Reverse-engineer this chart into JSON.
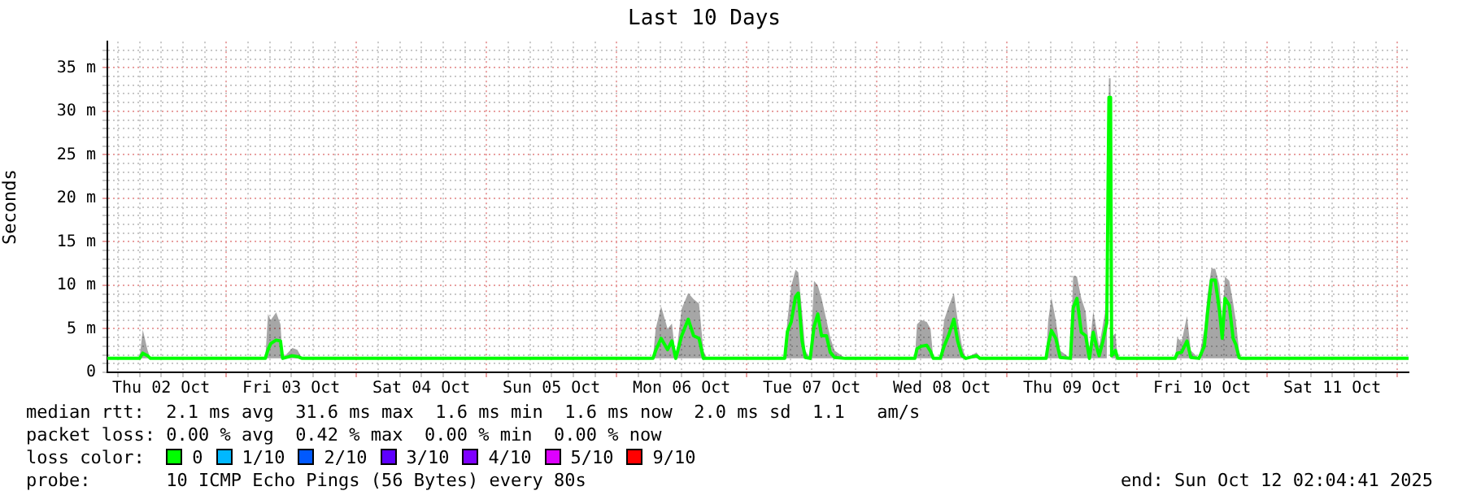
{
  "chart_data": {
    "type": "line",
    "title": "Last 10 Days",
    "ylabel": "Seconds",
    "legend_title": "loss color:",
    "legend": "bottom",
    "grid": true,
    "x": [
      "2025-10-02T02:04",
      "2025-10-02T08:00",
      "2025-10-02T08:36",
      "2025-10-02T09:30",
      "2025-10-02T10:00",
      "2025-10-03T07:12",
      "2025-10-03T07:42",
      "2025-10-03T08:12",
      "2025-10-03T09:12",
      "2025-10-03T10:00",
      "2025-10-03T10:24",
      "2025-10-03T12:12",
      "2025-10-03T13:06",
      "2025-10-03T14:00",
      "2025-10-06T06:42",
      "2025-10-06T07:12",
      "2025-10-06T08:12",
      "2025-10-06T09:24",
      "2025-10-06T10:12",
      "2025-10-06T10:54",
      "2025-10-06T12:00",
      "2025-10-06T13:12",
      "2025-10-06T14:12",
      "2025-10-06T15:12",
      "2025-10-06T16:00",
      "2025-10-06T16:42",
      "2025-10-07T07:00",
      "2025-10-07T07:30",
      "2025-10-07T08:12",
      "2025-10-07T09:00",
      "2025-10-07T09:30",
      "2025-10-07T10:12",
      "2025-10-07T10:48",
      "2025-10-07T11:42",
      "2025-10-07T12:24",
      "2025-10-07T13:06",
      "2025-10-07T13:48",
      "2025-10-07T14:42",
      "2025-10-07T15:24",
      "2025-10-07T16:12",
      "2025-10-07T18:12",
      "2025-10-08T07:00",
      "2025-10-08T07:24",
      "2025-10-08T08:12",
      "2025-10-08T09:12",
      "2025-10-08T09:54",
      "2025-10-08T10:24",
      "2025-10-08T11:42",
      "2025-10-08T12:24",
      "2025-10-08T13:12",
      "2025-10-08T14:12",
      "2025-10-08T14:54",
      "2025-10-08T15:42",
      "2025-10-08T16:24",
      "2025-10-08T18:24",
      "2025-10-08T19:00",
      "2025-10-09T07:12",
      "2025-10-09T07:36",
      "2025-10-09T08:12",
      "2025-10-09T09:00",
      "2025-10-09T09:48",
      "2025-10-09T11:42",
      "2025-10-09T12:12",
      "2025-10-09T12:54",
      "2025-10-09T13:42",
      "2025-10-09T14:30",
      "2025-10-09T15:12",
      "2025-10-09T15:54",
      "2025-10-09T16:30",
      "2025-10-09T17:00",
      "2025-10-09T17:42",
      "2025-10-09T18:24",
      "2025-10-09T18:48",
      "2025-10-09T19:06",
      "2025-10-09T19:18",
      "2025-10-09T20:00",
      "2025-10-09T20:24",
      "2025-10-10T07:00",
      "2025-10-10T07:24",
      "2025-10-10T08:12",
      "2025-10-10T09:12",
      "2025-10-10T09:54",
      "2025-10-10T11:24",
      "2025-10-10T12:24",
      "2025-10-10T13:00",
      "2025-10-10T13:42",
      "2025-10-10T14:24",
      "2025-10-10T15:12",
      "2025-10-10T15:42",
      "2025-10-10T16:12",
      "2025-10-10T17:00",
      "2025-10-10T17:42",
      "2025-10-10T18:12",
      "2025-10-10T18:48",
      "2025-10-10T19:12",
      "2025-10-12T02:04"
    ],
    "series": [
      {
        "name": "0",
        "color": "#00ff00",
        "values": [
          1.6,
          1.6,
          2.2,
          1.9,
          1.6,
          1.6,
          2.6,
          3.3,
          3.7,
          3.6,
          1.6,
          1.9,
          1.8,
          1.6,
          1.6,
          2.5,
          3.9,
          2.6,
          3.6,
          1.6,
          4.2,
          6.1,
          4.2,
          3.9,
          1.6,
          1.6,
          1.6,
          4.7,
          5.8,
          8.7,
          9.1,
          3.6,
          1.7,
          1.6,
          5.2,
          6.7,
          4.2,
          4.2,
          2.3,
          1.7,
          1.6,
          1.6,
          2.7,
          3.0,
          3.1,
          2.4,
          1.6,
          1.6,
          3.0,
          4.2,
          6.1,
          3.6,
          1.9,
          1.6,
          1.9,
          1.6,
          1.6,
          3.2,
          4.8,
          3.9,
          1.7,
          1.6,
          7.4,
          8.5,
          4.6,
          4.2,
          1.6,
          4.6,
          3.0,
          1.9,
          3.6,
          5.7,
          31.6,
          31.6,
          1.9,
          2.5,
          1.6,
          1.6,
          2.2,
          2.3,
          3.6,
          1.7,
          1.6,
          3.0,
          6.9,
          10.6,
          10.6,
          7.0,
          3.9,
          8.5,
          7.7,
          3.9,
          3.2,
          1.7,
          1.6,
          1.6
        ],
        "lower": [
          1.6,
          1.6,
          1.6,
          1.6,
          1.6,
          1.6,
          1.6,
          1.6,
          1.6,
          1.6,
          1.6,
          1.6,
          1.6,
          1.6,
          1.6,
          1.6,
          1.6,
          1.6,
          1.6,
          1.6,
          1.6,
          1.6,
          1.6,
          1.6,
          1.6,
          1.6,
          1.6,
          1.6,
          1.6,
          1.6,
          1.6,
          1.6,
          1.6,
          1.6,
          1.6,
          1.6,
          1.6,
          1.6,
          1.6,
          1.6,
          1.6,
          1.6,
          1.6,
          1.6,
          1.6,
          1.6,
          1.6,
          1.6,
          1.6,
          1.6,
          1.6,
          1.6,
          1.6,
          1.6,
          1.6,
          1.6,
          1.6,
          1.6,
          1.6,
          1.6,
          1.6,
          1.6,
          1.6,
          1.6,
          1.6,
          1.6,
          1.6,
          1.6,
          1.6,
          1.6,
          1.6,
          1.6,
          29.5,
          29.5,
          1.6,
          1.6,
          1.6,
          1.6,
          1.6,
          1.6,
          1.6,
          1.6,
          1.6,
          1.6,
          1.6,
          1.6,
          1.6,
          1.6,
          1.6,
          1.6,
          1.6,
          1.6,
          1.6,
          1.6,
          1.6,
          1.6
        ],
        "upper": [
          1.6,
          1.6,
          4.9,
          2.5,
          1.6,
          1.6,
          6.7,
          6.0,
          6.9,
          5.5,
          1.6,
          2.8,
          2.6,
          1.6,
          1.6,
          5.0,
          7.6,
          5.0,
          5.6,
          1.6,
          7.3,
          9.1,
          8.4,
          7.9,
          2.5,
          1.6,
          1.6,
          6.0,
          9.9,
          11.8,
          11.5,
          7.0,
          2.5,
          1.6,
          10.5,
          10.0,
          8.5,
          6.0,
          4.0,
          2.5,
          1.6,
          1.6,
          5.5,
          6.0,
          5.8,
          5.0,
          1.6,
          1.6,
          6.0,
          7.5,
          9.1,
          6.0,
          3.0,
          1.6,
          2.3,
          1.6,
          1.6,
          6.0,
          8.6,
          6.0,
          2.5,
          1.6,
          11.1,
          11.0,
          8.5,
          7.0,
          2.5,
          7.0,
          5.0,
          3.0,
          5.5,
          8.0,
          33.8,
          33.8,
          4.0,
          4.5,
          1.6,
          1.6,
          4.0,
          3.5,
          6.5,
          2.5,
          1.6,
          5.0,
          9.0,
          11.9,
          11.9,
          10.0,
          6.0,
          11.0,
          10.5,
          8.0,
          6.0,
          2.5,
          1.6,
          1.6
        ]
      },
      {
        "name": "1/10",
        "color": "#00b8ff",
        "values": [
          null,
          null,
          null,
          null,
          null,
          null,
          null,
          null,
          null,
          null,
          null,
          null,
          null,
          null,
          null,
          null,
          null,
          null,
          null,
          null,
          null,
          null,
          null,
          null,
          null,
          null,
          null,
          null,
          null,
          null,
          null,
          null,
          null,
          null,
          null,
          null,
          null,
          null,
          null,
          null,
          null,
          null,
          null,
          null,
          null,
          null,
          null,
          null,
          null,
          null,
          null,
          null,
          null,
          null,
          null,
          null,
          null,
          null,
          null,
          null,
          null,
          null,
          null,
          null,
          null,
          null,
          null,
          null,
          null,
          null,
          null,
          null,
          null,
          null,
          null,
          null,
          null,
          null,
          null,
          null,
          null,
          null,
          null,
          null,
          null,
          null,
          null,
          null,
          null,
          null,
          null,
          null,
          null,
          null,
          null,
          null
        ]
      },
      {
        "name": "2/10",
        "color": "#0059ff",
        "values": [
          null,
          null,
          null,
          null,
          null,
          null,
          null,
          null,
          null,
          null,
          null,
          null,
          null,
          null,
          null,
          null,
          null,
          null,
          null,
          null,
          null,
          null,
          null,
          null,
          null,
          null,
          null,
          null,
          null,
          null,
          null,
          null,
          null,
          null,
          null,
          null,
          null,
          null,
          null,
          null,
          null,
          null,
          null,
          null,
          null,
          null,
          null,
          null,
          null,
          null,
          null,
          null,
          null,
          null,
          null,
          null,
          null,
          null,
          null,
          null,
          null,
          null,
          null,
          null,
          null,
          null,
          null,
          null,
          null,
          null,
          null,
          null,
          null,
          null,
          null,
          null,
          null,
          null,
          null,
          null,
          null,
          null,
          null,
          null,
          null,
          null,
          null,
          null,
          null,
          null,
          null,
          null,
          null,
          null,
          null,
          null
        ]
      },
      {
        "name": "3/10",
        "color": "#5e00ff",
        "values": [
          null,
          null,
          null,
          null,
          null,
          null,
          null,
          null,
          null,
          null,
          null,
          null,
          null,
          null,
          null,
          null,
          null,
          null,
          null,
          null,
          null,
          null,
          null,
          null,
          null,
          null,
          null,
          null,
          null,
          null,
          null,
          null,
          null,
          null,
          null,
          null,
          null,
          null,
          null,
          null,
          null,
          null,
          null,
          null,
          null,
          null,
          null,
          null,
          null,
          null,
          null,
          null,
          null,
          null,
          null,
          null,
          null,
          null,
          null,
          null,
          null,
          null,
          null,
          null,
          null,
          null,
          null,
          null,
          null,
          null,
          null,
          null,
          null,
          null,
          null,
          null,
          null,
          null,
          null,
          null,
          null,
          null,
          null,
          null,
          null,
          null,
          null,
          null,
          null,
          null,
          null,
          null,
          null,
          null,
          null,
          null
        ]
      },
      {
        "name": "4/10",
        "color": "#7e00ff",
        "values": [
          null,
          null,
          null,
          null,
          null,
          null,
          null,
          null,
          null,
          null,
          null,
          null,
          null,
          null,
          null,
          null,
          null,
          null,
          null,
          null,
          null,
          null,
          null,
          null,
          null,
          null,
          null,
          null,
          null,
          null,
          null,
          null,
          null,
          null,
          null,
          null,
          null,
          null,
          null,
          null,
          null,
          null,
          null,
          null,
          null,
          null,
          null,
          null,
          null,
          null,
          null,
          null,
          null,
          null,
          null,
          null,
          null,
          null,
          null,
          null,
          null,
          null,
          null,
          null,
          null,
          null,
          null,
          null,
          null,
          null,
          null,
          null,
          null,
          null,
          null,
          null,
          null,
          null,
          null,
          null,
          null,
          null,
          null,
          null,
          null,
          null,
          null,
          null,
          null,
          null,
          null,
          null,
          null,
          null,
          null,
          null
        ]
      },
      {
        "name": "5/10",
        "color": "#dd00ff",
        "values": [
          null,
          null,
          null,
          null,
          null,
          null,
          null,
          null,
          null,
          null,
          null,
          null,
          null,
          null,
          null,
          null,
          null,
          null,
          null,
          null,
          null,
          null,
          null,
          null,
          null,
          null,
          null,
          null,
          null,
          null,
          null,
          null,
          null,
          null,
          null,
          null,
          null,
          null,
          null,
          null,
          null,
          null,
          null,
          null,
          null,
          null,
          null,
          null,
          null,
          null,
          null,
          null,
          null,
          null,
          null,
          null,
          null,
          null,
          null,
          null,
          null,
          null,
          null,
          null,
          null,
          null,
          null,
          null,
          null,
          null,
          null,
          null,
          null,
          null,
          null,
          null,
          null,
          null,
          null,
          null,
          null,
          null,
          null,
          null,
          null,
          null,
          null,
          null,
          null,
          null,
          null,
          null,
          null,
          null,
          null,
          null
        ]
      },
      {
        "name": "9/10",
        "color": "#ff0000",
        "values": [
          null,
          null,
          null,
          null,
          null,
          null,
          null,
          null,
          null,
          null,
          null,
          null,
          null,
          null,
          null,
          null,
          null,
          null,
          null,
          null,
          null,
          null,
          null,
          null,
          null,
          null,
          null,
          null,
          null,
          null,
          null,
          null,
          null,
          null,
          null,
          null,
          null,
          null,
          null,
          null,
          null,
          null,
          null,
          null,
          null,
          null,
          null,
          null,
          null,
          null,
          null,
          null,
          null,
          null,
          null,
          null,
          null,
          null,
          null,
          null,
          null,
          null,
          null,
          null,
          null,
          null,
          null,
          null,
          null,
          null,
          null,
          null,
          null,
          null,
          null,
          null,
          null,
          null,
          null,
          null,
          null,
          null,
          null,
          null,
          null,
          null,
          null,
          null,
          null,
          null,
          null,
          null,
          null,
          null,
          null,
          null
        ]
      }
    ],
    "xlim": [
      "2025-10-02T02:04",
      "2025-10-12T02:04"
    ],
    "xticks": [
      {
        "value": "2025-10-02T04:00",
        "label": null
      },
      {
        "value": "2025-10-02T08:00",
        "label": null
      },
      {
        "value": "2025-10-02T12:00",
        "label": "Thu 02 Oct"
      },
      {
        "value": "2025-10-02T16:00",
        "label": null
      },
      {
        "value": "2025-10-02T20:00",
        "label": null
      },
      {
        "value": "2025-10-03T00:00",
        "label": null
      },
      {
        "value": "2025-10-03T04:00",
        "label": null
      },
      {
        "value": "2025-10-03T08:00",
        "label": null
      },
      {
        "value": "2025-10-03T12:00",
        "label": "Fri 03 Oct"
      },
      {
        "value": "2025-10-03T16:00",
        "label": null
      },
      {
        "value": "2025-10-03T20:00",
        "label": null
      },
      {
        "value": "2025-10-04T00:00",
        "label": null
      },
      {
        "value": "2025-10-04T04:00",
        "label": null
      },
      {
        "value": "2025-10-04T08:00",
        "label": null
      },
      {
        "value": "2025-10-04T12:00",
        "label": "Sat 04 Oct"
      },
      {
        "value": "2025-10-04T16:00",
        "label": null
      },
      {
        "value": "2025-10-04T20:00",
        "label": null
      },
      {
        "value": "2025-10-05T00:00",
        "label": null
      },
      {
        "value": "2025-10-05T04:00",
        "label": null
      },
      {
        "value": "2025-10-05T08:00",
        "label": null
      },
      {
        "value": "2025-10-05T12:00",
        "label": "Sun 05 Oct"
      },
      {
        "value": "2025-10-05T16:00",
        "label": null
      },
      {
        "value": "2025-10-05T20:00",
        "label": null
      },
      {
        "value": "2025-10-06T00:00",
        "label": null
      },
      {
        "value": "2025-10-06T04:00",
        "label": null
      },
      {
        "value": "2025-10-06T08:00",
        "label": null
      },
      {
        "value": "2025-10-06T12:00",
        "label": "Mon 06 Oct"
      },
      {
        "value": "2025-10-06T16:00",
        "label": null
      },
      {
        "value": "2025-10-06T20:00",
        "label": null
      },
      {
        "value": "2025-10-07T00:00",
        "label": null
      },
      {
        "value": "2025-10-07T04:00",
        "label": null
      },
      {
        "value": "2025-10-07T08:00",
        "label": null
      },
      {
        "value": "2025-10-07T12:00",
        "label": "Tue 07 Oct"
      },
      {
        "value": "2025-10-07T16:00",
        "label": null
      },
      {
        "value": "2025-10-07T20:00",
        "label": null
      },
      {
        "value": "2025-10-08T00:00",
        "label": null
      },
      {
        "value": "2025-10-08T04:00",
        "label": null
      },
      {
        "value": "2025-10-08T08:00",
        "label": null
      },
      {
        "value": "2025-10-08T12:00",
        "label": "Wed 08 Oct"
      },
      {
        "value": "2025-10-08T16:00",
        "label": null
      },
      {
        "value": "2025-10-08T20:00",
        "label": null
      },
      {
        "value": "2025-10-09T00:00",
        "label": null
      },
      {
        "value": "2025-10-09T04:00",
        "label": null
      },
      {
        "value": "2025-10-09T08:00",
        "label": null
      },
      {
        "value": "2025-10-09T12:00",
        "label": "Thu 09 Oct"
      },
      {
        "value": "2025-10-09T16:00",
        "label": null
      },
      {
        "value": "2025-10-09T20:00",
        "label": null
      },
      {
        "value": "2025-10-10T00:00",
        "label": null
      },
      {
        "value": "2025-10-10T04:00",
        "label": null
      },
      {
        "value": "2025-10-10T08:00",
        "label": null
      },
      {
        "value": "2025-10-10T12:00",
        "label": "Fri 10 Oct"
      },
      {
        "value": "2025-10-10T16:00",
        "label": null
      },
      {
        "value": "2025-10-10T20:00",
        "label": null
      },
      {
        "value": "2025-10-11T00:00",
        "label": null
      },
      {
        "value": "2025-10-11T04:00",
        "label": null
      },
      {
        "value": "2025-10-11T08:00",
        "label": null
      },
      {
        "value": "2025-10-11T12:00",
        "label": "Sat 11 Oct"
      },
      {
        "value": "2025-10-11T16:00",
        "label": null
      },
      {
        "value": "2025-10-11T20:00",
        "label": null
      },
      {
        "value": "2025-10-12T00:00",
        "label": null
      }
    ],
    "ylim": [
      0,
      38
    ],
    "yticks": [
      0,
      {
        "value": 1,
        "label": null
      },
      {
        "value": 2,
        "label": null
      },
      {
        "value": 3,
        "label": null
      },
      {
        "value": 4,
        "label": null
      },
      {
        "value": 5,
        "label": "5 m"
      },
      {
        "value": 6,
        "label": null
      },
      {
        "value": 7,
        "label": null
      },
      {
        "value": 8,
        "label": null
      },
      {
        "value": 9,
        "label": null
      },
      {
        "value": 10,
        "label": "10 m"
      },
      {
        "value": 11,
        "label": null
      },
      {
        "value": 12,
        "label": null
      },
      {
        "value": 13,
        "label": null
      },
      {
        "value": 14,
        "label": null
      },
      {
        "value": 15,
        "label": "15 m"
      },
      {
        "value": 16,
        "label": null
      },
      {
        "value": 17,
        "label": null
      },
      {
        "value": 18,
        "label": null
      },
      {
        "value": 19,
        "label": null
      },
      {
        "value": 20,
        "label": "20 m"
      },
      {
        "value": 21,
        "label": null
      },
      {
        "value": 22,
        "label": null
      },
      {
        "value": 23,
        "label": null
      },
      {
        "value": 24,
        "label": null
      },
      {
        "value": 25,
        "label": "25 m"
      },
      {
        "value": 26,
        "label": null
      },
      {
        "value": 27,
        "label": null
      },
      {
        "value": 28,
        "label": null
      },
      {
        "value": 29,
        "label": null
      },
      {
        "value": 30,
        "label": "30 m"
      },
      {
        "value": 31,
        "label": null
      },
      {
        "value": 32,
        "label": null
      },
      {
        "value": 33,
        "label": null
      },
      {
        "value": 34,
        "label": null
      },
      {
        "value": 35,
        "label": "35 m"
      },
      {
        "value": 36,
        "label": null
      },
      {
        "value": 37,
        "label": null
      }
    ],
    "annotations": [
      "median rtt:  2.1 ms avg  31.6 ms max  1.6 ms min  1.6 ms now  2.0 ms sd  1.1   am/s",
      "packet loss: 0.00 % avg  0.42 % max  0.00 % min  0.00 % now",
      "probe:       10 ICMP Echo Pings (56 Bytes) every 80s",
      "end: Sun Oct 12 02:04:41 2025"
    ]
  }
}
